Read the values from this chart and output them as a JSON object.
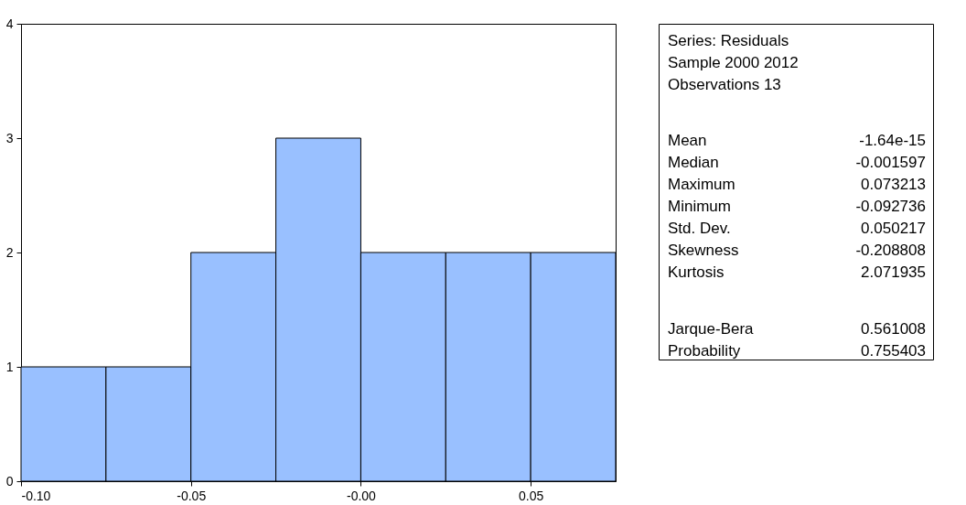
{
  "chart_data": [
    {
      "type": "histogram",
      "bins": [
        -0.1,
        -0.075,
        -0.05,
        -0.025,
        0.0,
        0.025,
        0.05,
        0.075
      ],
      "values": [
        1,
        1,
        2,
        3,
        2,
        2,
        2
      ],
      "color": "#99c0ff",
      "xlim": [
        -0.1,
        0.075
      ],
      "xticks": [
        {
          "value": -0.1,
          "label": "-0.10"
        },
        -0.05,
        {
          "value": 0.0,
          "label": "-0.00"
        },
        0.05
      ],
      "ylim": [
        0,
        4
      ],
      "yticks": [
        0,
        1,
        2,
        3,
        4
      ],
      "grid": false
    },
    {
      "type": "other",
      "annotations": [
        "Series: Residuals",
        "Sample 2000 2012",
        "Observations 13",
        "Mean",
        "-1.64e-15",
        "Median",
        "-0.001597",
        "Maximum",
        "0.073213",
        "Minimum",
        "-0.092736",
        "Std. Dev.",
        "0.050217",
        "Skewness",
        "-0.208808",
        "Kurtosis",
        "2.071935",
        "Jarque-Bera",
        "0.561008",
        "Probability",
        "0.755403"
      ]
    }
  ]
}
